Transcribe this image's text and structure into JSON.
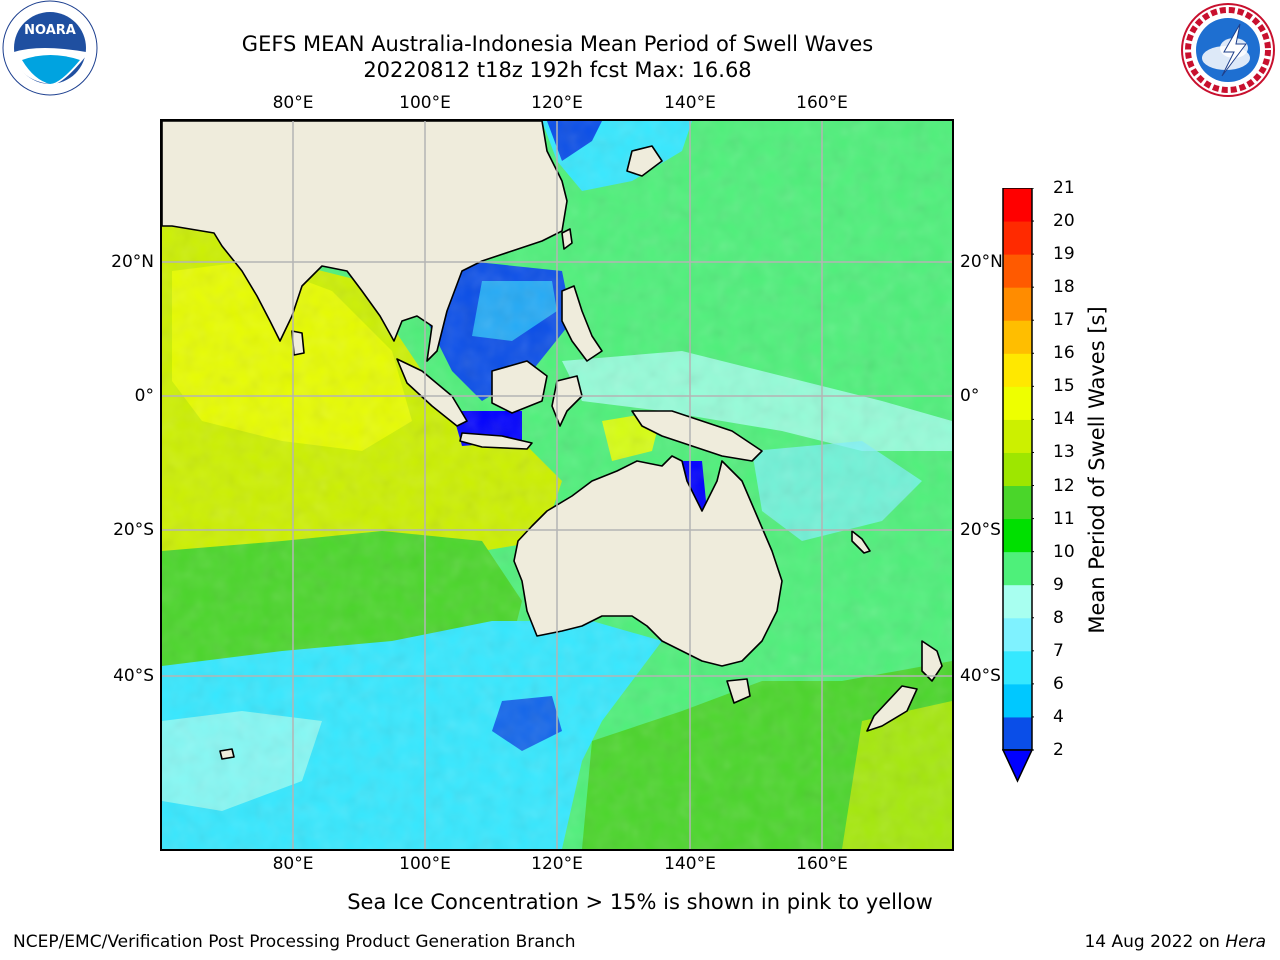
{
  "header": {
    "title_line1": "GEFS MEAN Australia-Indonesia Mean Period of Swell Waves",
    "title_line2": "20220812 t18z 192h fcst   Max: 16.68"
  },
  "logos": {
    "left": {
      "name": "NOARA",
      "ring_text": "NATIONAL OCEANIC AND ATMOSPHERIC ADMINISTRATION · U.S. DEPARTMENT OF COMMERCE"
    },
    "right": {
      "ring_text": "NATIONAL WEATHER SERVICE"
    }
  },
  "map": {
    "lon_ticks": [
      "80°E",
      "100°E",
      "120°E",
      "140°E",
      "160°E"
    ],
    "lat_ticks": [
      "20°N",
      "0°",
      "20°S",
      "40°S"
    ],
    "ocean_color": "#4ef07a",
    "land_color": "#efecdc"
  },
  "colorbar": {
    "label": "Mean Period of Swell Waves [s]",
    "levels": [
      "2",
      "4",
      "6",
      "7",
      "8",
      "9",
      "10",
      "11",
      "12",
      "13",
      "14",
      "15",
      "16",
      "17",
      "18",
      "19",
      "20",
      "21"
    ],
    "colors": [
      "#0a4ee8",
      "#00c8ff",
      "#35e8ff",
      "#7ff2ff",
      "#a8fff0",
      "#4ef07a",
      "#00e000",
      "#4ad62a",
      "#9ee600",
      "#ccf000",
      "#eeff00",
      "#ffe800",
      "#ffbe00",
      "#ff8c00",
      "#ff5a00",
      "#ff2a00",
      "#ff0000"
    ],
    "under_color": "#0000ff"
  },
  "footer": {
    "note": "Sea Ice Concentration > 15% is shown in pink to yellow",
    "credit": "NCEP/EMC/Verification Post Processing Product Generation Branch",
    "date_prefix": "14 Aug 2022 on ",
    "date_host": "Hera"
  }
}
